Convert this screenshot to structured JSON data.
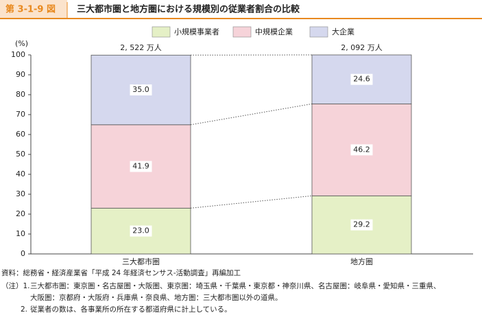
{
  "chart_data": {
    "type": "stacked_bar",
    "figure_label": "第 3-1-9 図",
    "title": "三大都市圏と地方圏における規模別の従業者割合の比較",
    "y_unit": "(%)",
    "categories": [
      "三大都市圏",
      "地方圏"
    ],
    "bar_labels": [
      "2, 522 万人",
      "2, 092 万人"
    ],
    "series": [
      {
        "name": "小規模事業者",
        "color": "#e5f0c6",
        "values": [
          23,
          29.2
        ],
        "value_labels": [
          "23.0",
          "29.2"
        ]
      },
      {
        "name": "中規模企業",
        "color": "#f6d3d9",
        "values": [
          41.9,
          46.2
        ],
        "value_labels": [
          "41.9",
          "46.2"
        ]
      },
      {
        "name": "大企業",
        "color": "#d5d8ee",
        "values": [
          35,
          24.6
        ],
        "value_labels": [
          "35.0",
          "24.6"
        ]
      }
    ],
    "ylim": [
      0,
      100
    ],
    "yticks": [
      0,
      10,
      20,
      30,
      40,
      50,
      60,
      70,
      80,
      90,
      100
    ],
    "legend_position": "top",
    "source": "資料：総務省・経済産業省「平成 24 年経済センサス-活動調査」再編加工",
    "notes": [
      "（注）1.",
      "三大都市圏：東京圏・名古屋圏・大阪圏、東京圏：埼玉県・千葉県・東京都・神奈川県、名古屋圏：岐阜県・愛知県・三重県、",
      "大阪圏：京都府・大阪府・兵庫県・奈良県、地方圏：三大都市圏以外の道県。",
      "2.",
      "従業者の数は、各事業所の所在する都道府県に計上している。"
    ]
  }
}
